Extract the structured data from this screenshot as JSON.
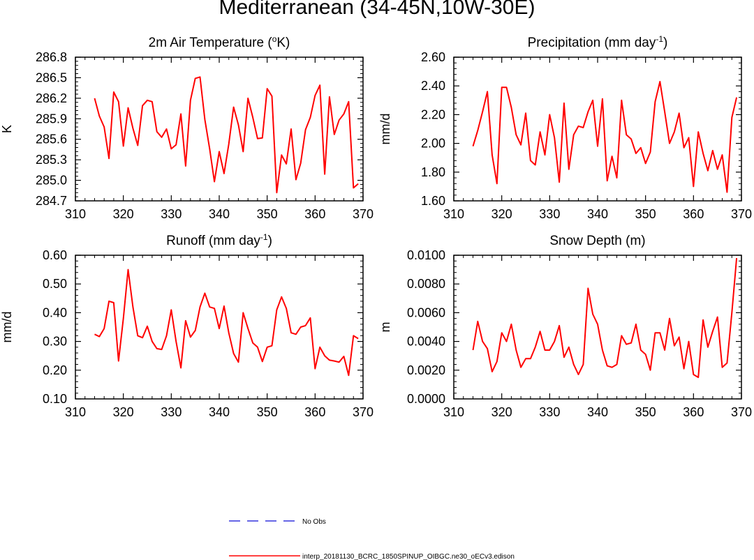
{
  "title": "Mediterranean (34-45N,10W-30E)",
  "colors": {
    "model": "#ff0000",
    "obs": "#3333dd",
    "axis": "#000000"
  },
  "legend": {
    "obs_label": "No Obs",
    "model_label": "interp_20181130_BCRC_1850SPINUP_OIBGC.ne30_oECv3.edison"
  },
  "chart_data": [
    {
      "id": "temp",
      "type": "line",
      "title": "2m Air Temperature (",
      "title_sup": "o",
      "title_end": "K)",
      "ylabel": "K",
      "xlim": [
        310,
        370
      ],
      "ylim": [
        284.7,
        286.8
      ],
      "xticks": [
        "310",
        "320",
        "330",
        "340",
        "350",
        "360",
        "370"
      ],
      "yticks": [
        "284.7",
        "285.0",
        "285.3",
        "285.6",
        "285.9",
        "286.2",
        "286.5",
        "286.8"
      ],
      "series": [
        {
          "name": "interp_20181130_BCRC_1850SPINUP_OIBGC.ne30_oECv3.edison",
          "x": [
            314,
            315,
            316,
            317,
            318,
            319,
            320,
            321,
            322,
            323,
            324,
            325,
            326,
            327,
            328,
            329,
            330,
            331,
            332,
            333,
            334,
            335,
            336,
            337,
            338,
            339,
            340,
            341,
            342,
            343,
            344,
            345,
            346,
            347,
            348,
            349,
            350,
            351,
            352,
            353,
            354,
            355,
            356,
            357,
            358,
            359,
            360,
            361,
            362,
            363,
            364,
            365,
            366,
            367,
            368,
            369
          ],
          "values": [
            286.2,
            285.94,
            285.78,
            285.32,
            286.29,
            286.15,
            285.5,
            286.06,
            285.76,
            285.51,
            286.09,
            286.17,
            286.15,
            285.71,
            285.63,
            285.75,
            285.46,
            285.52,
            285.97,
            285.21,
            286.17,
            286.49,
            286.51,
            285.89,
            285.46,
            284.98,
            285.42,
            285.1,
            285.53,
            286.07,
            285.81,
            285.42,
            286.2,
            285.92,
            285.61,
            285.62,
            286.34,
            286.23,
            284.82,
            285.37,
            285.24,
            285.75,
            285.01,
            285.25,
            285.74,
            285.92,
            286.24,
            286.39,
            285.09,
            286.22,
            285.67,
            285.88,
            285.97,
            286.15,
            284.89,
            284.95
          ]
        }
      ]
    },
    {
      "id": "precip",
      "type": "line",
      "title": "Precipitation (mm day",
      "title_sup": "-1",
      "title_end": ")",
      "ylabel": "mm/d",
      "xlim": [
        310,
        370
      ],
      "ylim": [
        1.6,
        2.6
      ],
      "xticks": [
        "310",
        "320",
        "330",
        "340",
        "350",
        "360",
        "370"
      ],
      "yticks": [
        "1.60",
        "1.80",
        "2.00",
        "2.20",
        "2.40",
        "2.60"
      ],
      "series": [
        {
          "name": "interp_20181130_BCRC_1850SPINUP_OIBGC.ne30_oECv3.edison",
          "x": [
            314,
            315,
            316,
            317,
            318,
            319,
            320,
            321,
            322,
            323,
            324,
            325,
            326,
            327,
            328,
            329,
            330,
            331,
            332,
            333,
            334,
            335,
            336,
            337,
            338,
            339,
            340,
            341,
            342,
            343,
            344,
            345,
            346,
            347,
            348,
            349,
            350,
            351,
            352,
            353,
            354,
            355,
            356,
            357,
            358,
            359,
            360,
            361,
            362,
            363,
            364,
            365,
            366,
            367,
            368,
            369
          ],
          "values": [
            1.98,
            2.09,
            2.22,
            2.36,
            1.92,
            1.72,
            2.39,
            2.39,
            2.25,
            2.06,
            1.99,
            2.21,
            1.88,
            1.85,
            2.08,
            1.92,
            2.2,
            2.04,
            1.73,
            2.28,
            1.82,
            2.06,
            2.12,
            2.11,
            2.22,
            2.3,
            1.98,
            2.31,
            1.74,
            1.91,
            1.76,
            2.3,
            2.06,
            2.03,
            1.93,
            1.97,
            1.86,
            1.94,
            2.29,
            2.43,
            2.22,
            2.0,
            2.08,
            2.21,
            1.97,
            2.04,
            1.7,
            2.08,
            1.93,
            1.81,
            1.95,
            1.82,
            1.92,
            1.66,
            2.18,
            2.32
          ]
        }
      ]
    },
    {
      "id": "runoff",
      "type": "line",
      "title": "Runoff (mm day",
      "title_sup": "-1",
      "title_end": ")",
      "ylabel": "mm/d",
      "xlim": [
        310,
        370
      ],
      "ylim": [
        0.1,
        0.6
      ],
      "xticks": [
        "310",
        "320",
        "330",
        "340",
        "350",
        "360",
        "370"
      ],
      "yticks": [
        "0.10",
        "0.20",
        "0.30",
        "0.40",
        "0.50",
        "0.60"
      ],
      "series": [
        {
          "name": "interp_20181130_BCRC_1850SPINUP_OIBGC.ne30_oECv3.edison",
          "x": [
            314,
            315,
            316,
            317,
            318,
            319,
            320,
            321,
            322,
            323,
            324,
            325,
            326,
            327,
            328,
            329,
            330,
            331,
            332,
            333,
            334,
            335,
            336,
            337,
            338,
            339,
            340,
            341,
            342,
            343,
            344,
            345,
            346,
            347,
            348,
            349,
            350,
            351,
            352,
            353,
            354,
            355,
            356,
            357,
            358,
            359,
            360,
            361,
            362,
            363,
            364,
            365,
            366,
            367,
            368,
            369
          ],
          "values": [
            0.325,
            0.317,
            0.345,
            0.44,
            0.435,
            0.232,
            0.38,
            0.55,
            0.42,
            0.32,
            0.313,
            0.353,
            0.3,
            0.275,
            0.272,
            0.32,
            0.41,
            0.3,
            0.208,
            0.372,
            0.315,
            0.338,
            0.42,
            0.468,
            0.42,
            0.415,
            0.345,
            0.423,
            0.33,
            0.258,
            0.228,
            0.4,
            0.345,
            0.295,
            0.28,
            0.23,
            0.28,
            0.285,
            0.41,
            0.455,
            0.415,
            0.33,
            0.325,
            0.35,
            0.355,
            0.382,
            0.205,
            0.28,
            0.25,
            0.235,
            0.232,
            0.228,
            0.248,
            0.182,
            0.32,
            0.31
          ]
        }
      ]
    },
    {
      "id": "snow",
      "type": "line",
      "title": "Snow Depth (m)",
      "title_sup": "",
      "title_end": "",
      "ylabel": "m",
      "xlim": [
        310,
        370
      ],
      "ylim": [
        0,
        0.01
      ],
      "xticks": [
        "310",
        "320",
        "330",
        "340",
        "350",
        "360",
        "370"
      ],
      "yticks": [
        "0.0000",
        "0.0020",
        "0.0040",
        "0.0060",
        "0.0080",
        "0.0100"
      ],
      "series": [
        {
          "name": "interp_20181130_BCRC_1850SPINUP_OIBGC.ne30_oECv3.edison",
          "x": [
            314,
            315,
            316,
            317,
            318,
            319,
            320,
            321,
            322,
            323,
            324,
            325,
            326,
            327,
            328,
            329,
            330,
            331,
            332,
            333,
            334,
            335,
            336,
            337,
            338,
            339,
            340,
            341,
            342,
            343,
            344,
            345,
            346,
            347,
            348,
            349,
            350,
            351,
            352,
            353,
            354,
            355,
            356,
            357,
            358,
            359,
            360,
            361,
            362,
            363,
            364,
            365,
            366,
            367,
            368,
            369
          ],
          "values": [
            0.0034,
            0.0054,
            0.004,
            0.0035,
            0.0019,
            0.0026,
            0.0046,
            0.004,
            0.0052,
            0.0034,
            0.0022,
            0.0028,
            0.0028,
            0.0036,
            0.0047,
            0.0034,
            0.0034,
            0.004,
            0.0051,
            0.0029,
            0.0036,
            0.0024,
            0.0017,
            0.0024,
            0.0077,
            0.0059,
            0.0052,
            0.0034,
            0.0023,
            0.0022,
            0.0024,
            0.0044,
            0.0038,
            0.0039,
            0.0052,
            0.0034,
            0.0031,
            0.002,
            0.0046,
            0.0046,
            0.0034,
            0.0056,
            0.0037,
            0.0043,
            0.0021,
            0.004,
            0.0017,
            0.0015,
            0.0055,
            0.0036,
            0.0047,
            0.0057,
            0.0022,
            0.0025,
            0.006,
            0.0098
          ]
        }
      ]
    }
  ]
}
